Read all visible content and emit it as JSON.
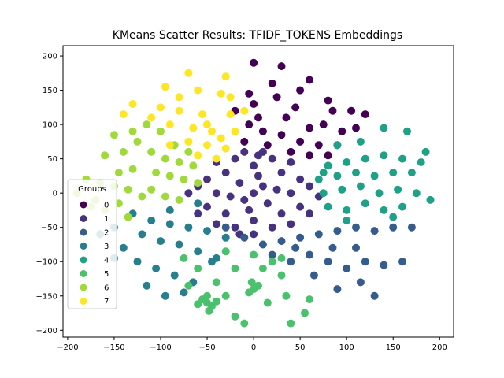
{
  "chart_data": {
    "type": "scatter",
    "title": "KMeans Scatter Results: TFIDF_TOKENS Embeddings",
    "xlabel": "",
    "ylabel": "",
    "xlim": [
      -205,
      215
    ],
    "ylim": [
      -210,
      215
    ],
    "xticks": [
      -200,
      -150,
      -100,
      -50,
      0,
      50,
      100,
      150,
      200
    ],
    "yticks": [
      -200,
      -150,
      -100,
      -50,
      0,
      50,
      100,
      150,
      200
    ],
    "grid": false,
    "legend": {
      "title": "Groups",
      "position": "left"
    },
    "series": [
      {
        "name": "0",
        "color": "#440154",
        "points": [
          [
            0,
            190
          ],
          [
            30,
            185
          ],
          [
            60,
            165
          ],
          [
            -5,
            145
          ],
          [
            25,
            140
          ],
          [
            45,
            125
          ],
          [
            80,
            135
          ],
          [
            105,
            120
          ],
          [
            120,
            115
          ],
          [
            5,
            110
          ],
          [
            35,
            110
          ],
          [
            60,
            95
          ],
          [
            75,
            100
          ],
          [
            95,
            90
          ],
          [
            10,
            90
          ],
          [
            30,
            85
          ],
          [
            50,
            75
          ],
          [
            70,
            70
          ],
          [
            90,
            70
          ],
          [
            -5,
            100
          ],
          [
            15,
            70
          ],
          [
            40,
            60
          ],
          [
            60,
            55
          ],
          [
            80,
            55
          ],
          [
            -10,
            75
          ],
          [
            20,
            160
          ],
          [
            50,
            150
          ],
          [
            85,
            120
          ],
          [
            110,
            95
          ],
          [
            -20,
            120
          ],
          [
            0,
            130
          ]
        ]
      },
      {
        "name": "1",
        "color": "#46327e",
        "points": [
          [
            0,
            0
          ],
          [
            10,
            10
          ],
          [
            -10,
            -10
          ],
          [
            15,
            -15
          ],
          [
            -15,
            15
          ],
          [
            25,
            5
          ],
          [
            -25,
            -5
          ],
          [
            5,
            25
          ],
          [
            -5,
            -25
          ],
          [
            30,
            30
          ],
          [
            -30,
            30
          ],
          [
            30,
            -30
          ],
          [
            -30,
            -30
          ],
          [
            40,
            0
          ],
          [
            -40,
            0
          ],
          [
            0,
            40
          ],
          [
            0,
            -40
          ],
          [
            50,
            20
          ],
          [
            -50,
            20
          ],
          [
            50,
            -20
          ],
          [
            -50,
            -20
          ],
          [
            20,
            50
          ],
          [
            -20,
            50
          ],
          [
            20,
            -50
          ],
          [
            -20,
            -50
          ],
          [
            60,
            10
          ],
          [
            -60,
            10
          ],
          [
            60,
            -30
          ],
          [
            -60,
            -30
          ],
          [
            10,
            60
          ],
          [
            -10,
            60
          ],
          [
            40,
            45
          ],
          [
            -40,
            45
          ],
          [
            40,
            -45
          ],
          [
            -40,
            -45
          ],
          [
            -70,
            0
          ],
          [
            70,
            -5
          ],
          [
            0,
            -60
          ],
          [
            5,
            55
          ],
          [
            -15,
            -60
          ]
        ]
      },
      {
        "name": "2",
        "color": "#365c8d",
        "points": [
          [
            -30,
            -50
          ],
          [
            -10,
            -65
          ],
          [
            10,
            -75
          ],
          [
            30,
            -70
          ],
          [
            50,
            -65
          ],
          [
            70,
            -60
          ],
          [
            90,
            -55
          ],
          [
            110,
            -50
          ],
          [
            130,
            -55
          ],
          [
            150,
            -50
          ],
          [
            170,
            -50
          ],
          [
            60,
            -90
          ],
          [
            80,
            -100
          ],
          [
            100,
            -110
          ],
          [
            120,
            -100
          ],
          [
            140,
            -105
          ],
          [
            160,
            -100
          ],
          [
            40,
            -100
          ],
          [
            65,
            -120
          ],
          [
            90,
            -140
          ],
          [
            115,
            -130
          ],
          [
            130,
            -150
          ],
          [
            45,
            -80
          ],
          [
            20,
            -90
          ],
          [
            85,
            -80
          ],
          [
            110,
            -80
          ]
        ]
      },
      {
        "name": "3",
        "color": "#277f8e",
        "points": [
          [
            -130,
            -30
          ],
          [
            -110,
            -40
          ],
          [
            -90,
            -45
          ],
          [
            -70,
            -50
          ],
          [
            -50,
            -55
          ],
          [
            -30,
            -65
          ],
          [
            -150,
            -50
          ],
          [
            -120,
            -60
          ],
          [
            -100,
            -70
          ],
          [
            -80,
            -75
          ],
          [
            -60,
            -85
          ],
          [
            -40,
            -95
          ],
          [
            -150,
            -95
          ],
          [
            -125,
            -100
          ],
          [
            -105,
            -110
          ],
          [
            -85,
            -120
          ],
          [
            -65,
            -130
          ],
          [
            -115,
            -135
          ],
          [
            -95,
            -150
          ],
          [
            -75,
            -145
          ],
          [
            -165,
            -60
          ],
          [
            -140,
            -80
          ],
          [
            -90,
            -25
          ],
          [
            -60,
            -15
          ],
          [
            -45,
            -100
          ]
        ]
      },
      {
        "name": "4",
        "color": "#1fa187",
        "points": [
          [
            80,
            40
          ],
          [
            100,
            45
          ],
          [
            120,
            50
          ],
          [
            140,
            55
          ],
          [
            160,
            50
          ],
          [
            180,
            45
          ],
          [
            70,
            20
          ],
          [
            90,
            25
          ],
          [
            110,
            30
          ],
          [
            130,
            25
          ],
          [
            150,
            30
          ],
          [
            170,
            30
          ],
          [
            75,
            0
          ],
          [
            95,
            5
          ],
          [
            115,
            10
          ],
          [
            135,
            0
          ],
          [
            155,
            5
          ],
          [
            175,
            0
          ],
          [
            190,
            -10
          ],
          [
            80,
            -20
          ],
          [
            100,
            -25
          ],
          [
            120,
            -15
          ],
          [
            140,
            -25
          ],
          [
            160,
            -20
          ],
          [
            90,
            70
          ],
          [
            115,
            75
          ],
          [
            140,
            95
          ],
          [
            165,
            90
          ],
          [
            185,
            60
          ],
          [
            100,
            -40
          ],
          [
            150,
            -35
          ],
          [
            75,
            30
          ]
        ]
      },
      {
        "name": "5",
        "color": "#4ac16d",
        "points": [
          [
            -50,
            -160
          ],
          [
            -45,
            -165
          ],
          [
            -55,
            -155
          ],
          [
            -40,
            -158
          ],
          [
            -60,
            -162
          ],
          [
            -50,
            -150
          ],
          [
            -48,
            -172
          ],
          [
            0,
            -140
          ],
          [
            -5,
            -145
          ],
          [
            5,
            -135
          ],
          [
            -2,
            -130
          ],
          [
            -20,
            -110
          ],
          [
            10,
            -110
          ],
          [
            30,
            -120
          ],
          [
            -40,
            -130
          ],
          [
            -60,
            -110
          ],
          [
            -30,
            -85
          ],
          [
            0,
            -90
          ],
          [
            20,
            -100
          ],
          [
            -20,
            -180
          ],
          [
            15,
            -160
          ],
          [
            35,
            -150
          ],
          [
            60,
            -155
          ],
          [
            -10,
            -190
          ],
          [
            40,
            -190
          ],
          [
            55,
            -175
          ],
          [
            -75,
            -95
          ],
          [
            -30,
            -150
          ],
          [
            -70,
            -135
          ],
          [
            30,
            -95
          ]
        ]
      },
      {
        "name": "6",
        "color": "#9fda3a",
        "points": [
          [
            -180,
            20
          ],
          [
            -165,
            15
          ],
          [
            -190,
            0
          ],
          [
            -170,
            -10
          ],
          [
            -175,
            -20
          ],
          [
            -160,
            -25
          ],
          [
            -145,
            30
          ],
          [
            -130,
            35
          ],
          [
            -150,
            10
          ],
          [
            -135,
            5
          ],
          [
            -120,
            -5
          ],
          [
            -145,
            -15
          ],
          [
            -160,
            55
          ],
          [
            -140,
            60
          ],
          [
            -125,
            75
          ],
          [
            -110,
            60
          ],
          [
            -95,
            50
          ],
          [
            -80,
            45
          ],
          [
            -65,
            40
          ],
          [
            -105,
            30
          ],
          [
            -90,
            25
          ],
          [
            -75,
            20
          ],
          [
            -60,
            15
          ],
          [
            -110,
            5
          ],
          [
            -95,
            -5
          ],
          [
            -80,
            -10
          ],
          [
            -130,
            90
          ],
          [
            -150,
            85
          ],
          [
            -115,
            100
          ],
          [
            -100,
            90
          ],
          [
            -85,
            70
          ],
          [
            -70,
            60
          ],
          [
            -135,
            -35
          ]
        ]
      },
      {
        "name": "7",
        "color": "#fde725",
        "points": [
          [
            -70,
            175
          ],
          [
            -30,
            170
          ],
          [
            -95,
            155
          ],
          [
            -60,
            150
          ],
          [
            -35,
            145
          ],
          [
            -100,
            125
          ],
          [
            -80,
            120
          ],
          [
            -55,
            115
          ],
          [
            -25,
            115
          ],
          [
            -130,
            130
          ],
          [
            -110,
            110
          ],
          [
            -90,
            100
          ],
          [
            -65,
            95
          ],
          [
            -45,
            90
          ],
          [
            -20,
            90
          ],
          [
            -70,
            75
          ],
          [
            -50,
            70
          ],
          [
            -30,
            65
          ],
          [
            -60,
            55
          ],
          [
            -40,
            50
          ],
          [
            -140,
            115
          ],
          [
            -80,
            140
          ],
          [
            -10,
            120
          ],
          [
            -25,
            140
          ],
          [
            -90,
            70
          ],
          [
            -50,
            100
          ],
          [
            -35,
            80
          ]
        ]
      }
    ]
  }
}
